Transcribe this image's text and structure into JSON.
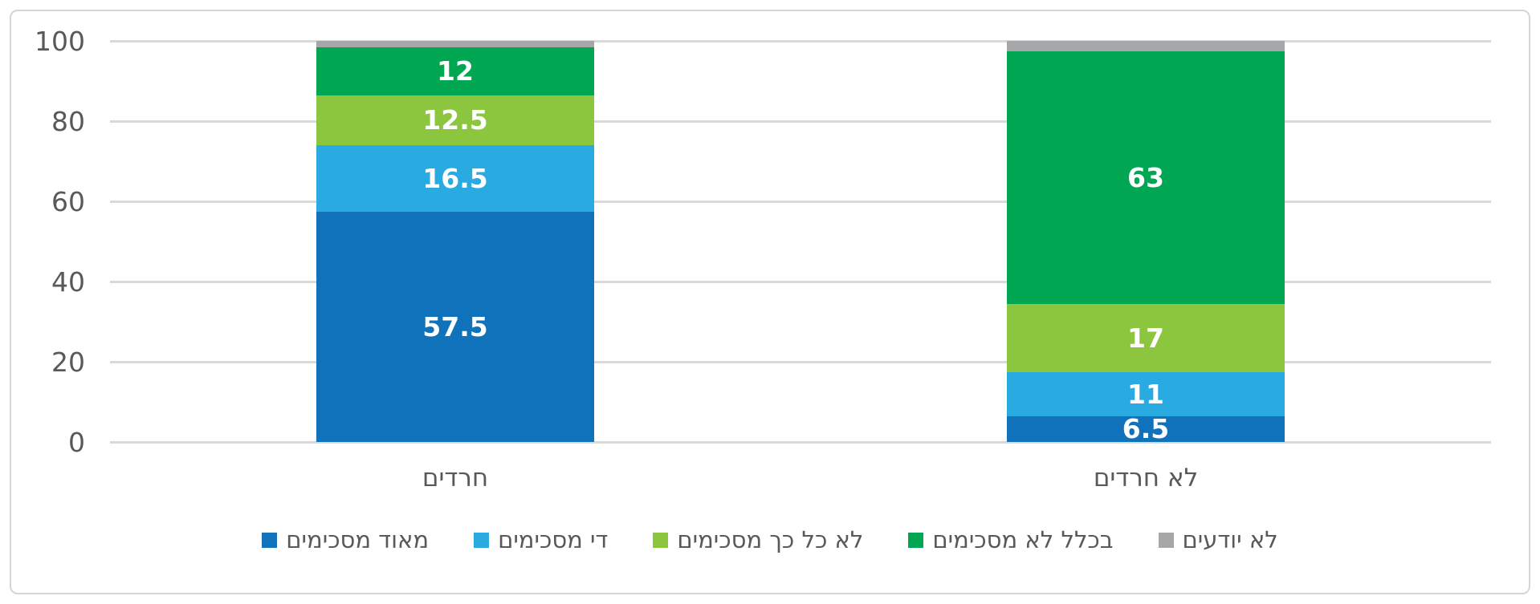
{
  "chart_data": {
    "type": "bar",
    "stacked": true,
    "text_direction": "rtl",
    "title": "",
    "xlabel": "",
    "ylabel": "",
    "categories": [
      "חרדים",
      "לא חרדים"
    ],
    "series": [
      {
        "name": "מאוד מסכימים",
        "color": "#0F72BA",
        "values": [
          57.5,
          6.5
        ],
        "labels": [
          "57.5",
          "6.5"
        ]
      },
      {
        "name": "די מסכימים",
        "color": "#29ABE2",
        "values": [
          16.5,
          11
        ],
        "labels": [
          "16.5",
          "11"
        ]
      },
      {
        "name": "לא כל כך מסכימים",
        "color": "#8CC63F",
        "values": [
          12.5,
          17
        ],
        "labels": [
          "12.5",
          "17"
        ]
      },
      {
        "name": "בכלל לא מסכימים",
        "color": "#00A651",
        "values": [
          12,
          63
        ],
        "labels": [
          "12",
          "63"
        ]
      },
      {
        "name": "לא יודעים",
        "color": "#A6A7A9",
        "values": [
          1.5,
          2.5
        ],
        "labels": [
          "",
          ""
        ]
      }
    ],
    "y_ticks": [
      "0",
      "20",
      "40",
      "60",
      "80",
      "100"
    ],
    "y_tick_values": [
      0,
      20,
      40,
      60,
      80,
      100
    ],
    "ylim": [
      0,
      100
    ],
    "grid": true,
    "legend_position": "bottom",
    "colors": {
      "grid": "#D9D9D9",
      "axis_text": "#595959",
      "data_label_text": "#FFFFFF",
      "frame_border": "#D5D5D5",
      "background": "#FFFFFF"
    }
  }
}
